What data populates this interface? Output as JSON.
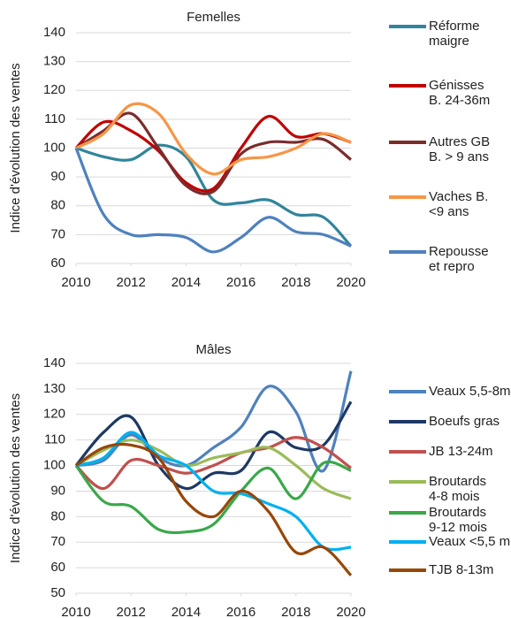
{
  "chart_data": [
    {
      "type": "line",
      "title": "Femelles",
      "y_label": "Indice d'évolution des ventes",
      "x": [
        2010,
        2011,
        2012,
        2013,
        2014,
        2015,
        2016,
        2017,
        2018,
        2019,
        2020
      ],
      "xlim": [
        2010,
        2020
      ],
      "xticks": [
        2010,
        2012,
        2014,
        2016,
        2018,
        2020
      ],
      "ylim": [
        60,
        140
      ],
      "yticks": [
        60,
        70,
        80,
        90,
        100,
        110,
        120,
        130,
        140
      ],
      "grid": true,
      "series": [
        {
          "name": "Réforme\nmaigre",
          "color": "#31849b",
          "values": [
            100,
            97,
            96,
            101,
            97,
            82,
            81,
            82,
            77,
            76,
            66
          ]
        },
        {
          "name": "Génisses\nB. 24-36m",
          "color": "#c00000",
          "values": [
            100,
            109,
            106,
            99,
            88,
            86,
            100,
            111,
            104,
            105,
            102
          ]
        },
        {
          "name": "Autres GB\nB. > 9 ans",
          "color": "#7b2c2c",
          "values": [
            100,
            106,
            112,
            100,
            87,
            85,
            98,
            102,
            102,
            103,
            96
          ]
        },
        {
          "name": "Vaches B.\n<9 ans",
          "color": "#f79646",
          "values": [
            100,
            105,
            115,
            112,
            98,
            91,
            96,
            97,
            100,
            105,
            102
          ]
        },
        {
          "name": "Repousse\net repro",
          "color": "#4f81bd",
          "values": [
            100,
            77,
            70,
            70,
            69,
            64,
            69,
            76,
            71,
            70,
            66
          ]
        }
      ]
    },
    {
      "type": "line",
      "title": "Mâles",
      "y_label": "Indice d'évolution des ventes",
      "x": [
        2010,
        2011,
        2012,
        2013,
        2014,
        2015,
        2016,
        2017,
        2018,
        2019,
        2020
      ],
      "xlim": [
        2010,
        2020
      ],
      "xticks": [
        2010,
        2012,
        2014,
        2016,
        2018,
        2020
      ],
      "ylim": [
        50,
        140
      ],
      "yticks": [
        50,
        60,
        70,
        80,
        90,
        100,
        110,
        120,
        130,
        140
      ],
      "grid": true,
      "series": [
        {
          "name": "Veaux 5,5-8m",
          "color": "#4f81bd",
          "values": [
            100,
            102,
            112,
            103,
            100,
            107,
            115,
            131,
            121,
            98,
            137
          ]
        },
        {
          "name": "Boeufs gras",
          "color": "#1f3864",
          "values": [
            100,
            113,
            119,
            100,
            91,
            97,
            98,
            113,
            107,
            108,
            125
          ]
        },
        {
          "name": "JB 13-24m",
          "color": "#c0504d",
          "values": [
            100,
            91,
            102,
            100,
            97,
            100,
            105,
            107,
            111,
            107,
            99
          ]
        },
        {
          "name": "Broutards\n4-8 mois",
          "color": "#9bbb59",
          "values": [
            100,
            106,
            110,
            106,
            100,
            103,
            105,
            107,
            100,
            91,
            87
          ]
        },
        {
          "name": "Broutards\n9-12 mois",
          "color": "#3aa84a",
          "values": [
            100,
            86,
            84,
            75,
            74,
            77,
            90,
            99,
            87,
            101,
            98
          ]
        },
        {
          "name": "Veaux <5,5 m",
          "color": "#00b0f0",
          "values": [
            100,
            103,
            113,
            104,
            100,
            90,
            89,
            85,
            80,
            68,
            68
          ]
        },
        {
          "name": "TJB 8-13m",
          "color": "#974706",
          "values": [
            100,
            107,
            108,
            103,
            86,
            80,
            90,
            82,
            66,
            68,
            57
          ]
        }
      ]
    }
  ]
}
